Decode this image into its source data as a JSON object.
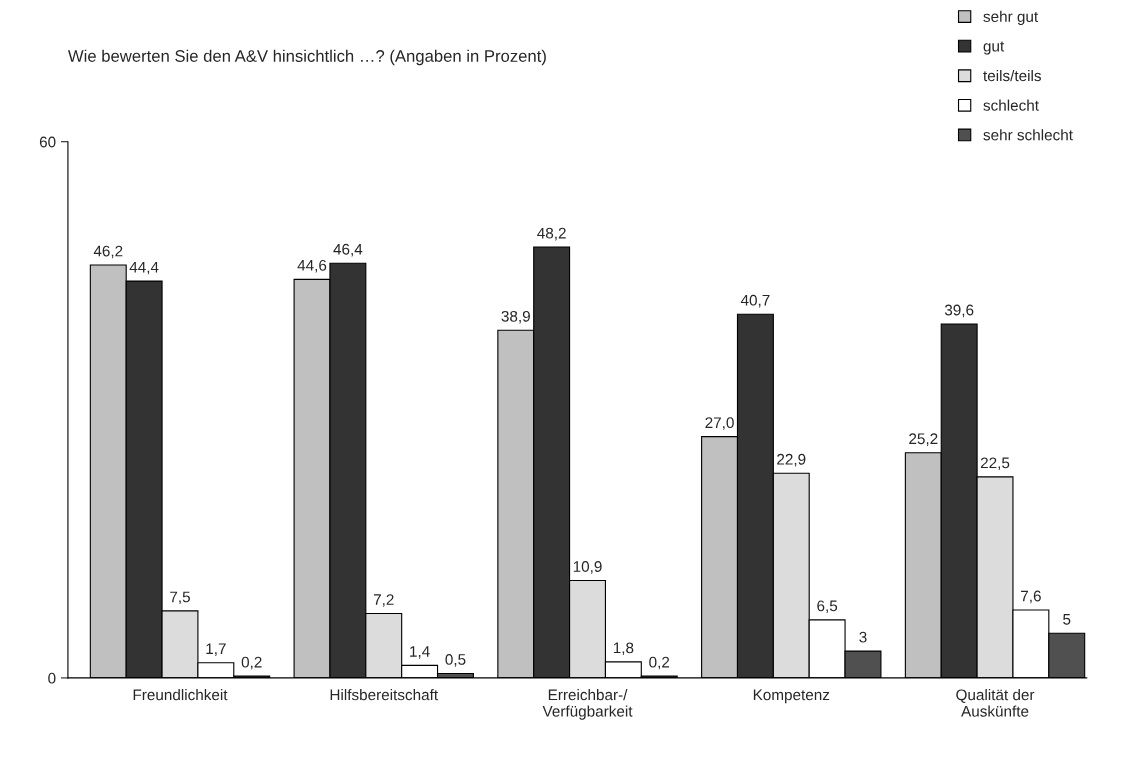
{
  "chart_data": {
    "type": "bar",
    "title": "Wie bewerten Sie den A&V hinsichtlich …? (Angaben in Prozent)",
    "categories": [
      "Freundlichkeit",
      "Hilfsbereitschaft",
      "Erreichbar-/\nVerfügbarkeit",
      "Kompetenz",
      "Qualität der\nAuskünfte"
    ],
    "series": [
      {
        "name": "sehr gut",
        "color": "#c0c0c0",
        "values": [
          46.2,
          44.6,
          38.9,
          27.0,
          25.2
        ],
        "value_labels": [
          "46,2",
          "44,6",
          "38,9",
          "27,0",
          "25,2"
        ]
      },
      {
        "name": "gut",
        "color": "#333333",
        "values": [
          44.4,
          46.4,
          48.2,
          40.7,
          39.6
        ],
        "value_labels": [
          "44,4",
          "46,4",
          "48,2",
          "40,7",
          "39,6"
        ]
      },
      {
        "name": "teils/teils",
        "color": "#dcdcdc",
        "values": [
          7.5,
          7.2,
          10.9,
          22.9,
          22.5
        ],
        "value_labels": [
          "7,5",
          "7,2",
          "10,9",
          "22,9",
          "22,5"
        ]
      },
      {
        "name": "schlecht",
        "color": "#ffffff",
        "values": [
          1.7,
          1.4,
          1.8,
          6.5,
          7.6
        ],
        "value_labels": [
          "1,7",
          "1,4",
          "1,8",
          "6,5",
          "7,6"
        ]
      },
      {
        "name": "sehr schlecht",
        "color": "#505050",
        "values": [
          0.2,
          0.5,
          0.2,
          3,
          5
        ],
        "value_labels": [
          "0,2",
          "0,5",
          "0,2",
          "3",
          "5"
        ]
      }
    ],
    "ylim": [
      0,
      60
    ],
    "yticks": [
      0,
      60
    ],
    "grid": false,
    "legend": "top right"
  }
}
